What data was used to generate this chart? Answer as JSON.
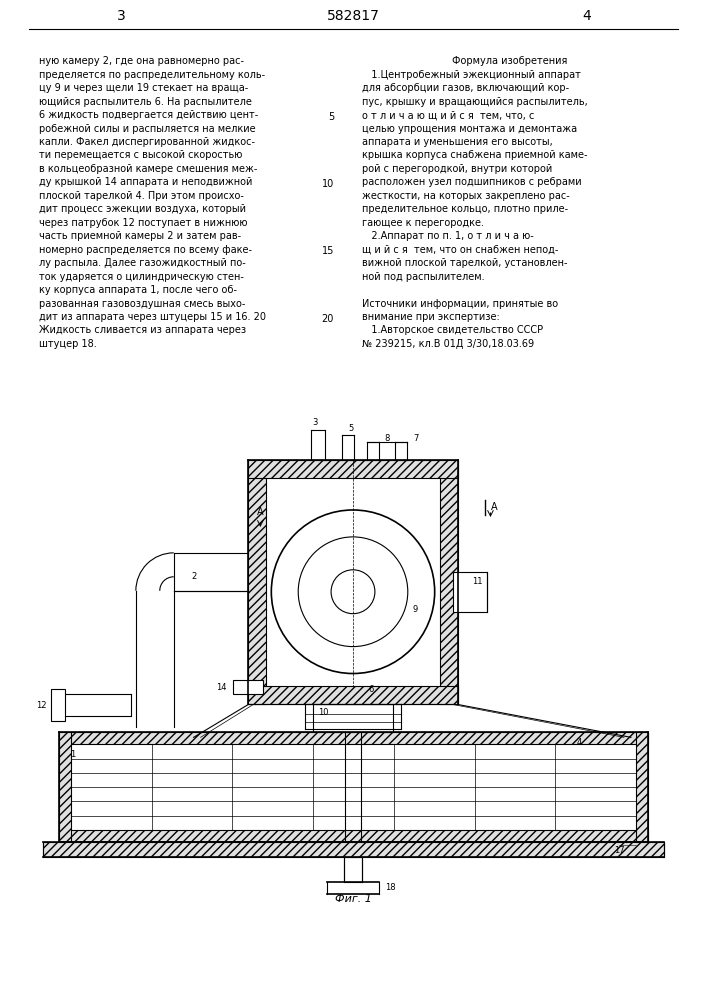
{
  "page_width": 7.07,
  "page_height": 10.0,
  "bg_color": "#ffffff",
  "text_color": "#000000",
  "page_num_left": "3",
  "page_num_center": "582817",
  "page_num_right": "4",
  "left_col_lines": [
    "ную камеру 2, где она равномерно рас-",
    "пределяется по распределительному коль-",
    "цу 9 и через щели 19 стекает на враща-",
    "ющийся распылитель 6. На распылителе",
    "6 жидкость подвергается действию цент-",
    "робежной силы и распыляется на мелкие",
    "капли. Факел диспергированной жидкос-",
    "ти перемещается с высокой скоростью",
    "в кольцеобразной камере смешения меж-",
    "ду крышкой 14 аппарата и неподвижной",
    "плоской тарелкой 4. При этом происхо-",
    "дит процесс эжекции воздуха, который",
    "через патрубок 12 поступает в нижнюю",
    "часть приемной камеры 2 и затем рав-",
    "номерно распределяется по всему факе-",
    "лу распыла. Далее газожидкостный по-",
    "ток ударяется о цилиндрическую стен-",
    "ку корпуса аппарата 1, после чего об-",
    "разованная газовоздушная смесь выхо-",
    "дит из аппарата через штуцеры 15 и 16. 20",
    "Жидкость сливается из аппарата через",
    "штуцер 18."
  ],
  "line_nums": [
    [
      4,
      "5"
    ],
    [
      9,
      "10"
    ],
    [
      14,
      "15"
    ],
    [
      19,
      "20"
    ]
  ],
  "right_col_header": "Формула изобретения",
  "right_col_lines": [
    "   1.Центробежный эжекционный аппарат",
    "для абсорбции газов, включающий кор-",
    "пус, крышку и вращающийся распылитель,",
    "о т л и ч а ю щ и й с я  тем, что, с",
    "целью упрощения монтажа и демонтажа",
    "аппарата и уменьшения его высоты,",
    "крышка корпуса снабжена приемной каме-",
    "рой с перегородкой, внутри которой",
    "расположен узел подшипников с ребрами",
    "жесткости, на которых закреплено рас-",
    "пределительное кольцо, плотно приле-",
    "гающее к перегородке.",
    "   2.Аппарат по п. 1, о т л и ч а ю-",
    "щ и й с я  тем, что он снабжен непод-",
    "вижной плоской тарелкой, установлен-",
    "ной под распылителем.",
    "",
    "Источники информации, принятые во",
    "внимание при экспертизе:",
    "   1.Авторское свидетельство СССР",
    "№ 239215, кл.В 01Д 3/30,18.03.69"
  ],
  "fig_caption": "Фиг. 1"
}
